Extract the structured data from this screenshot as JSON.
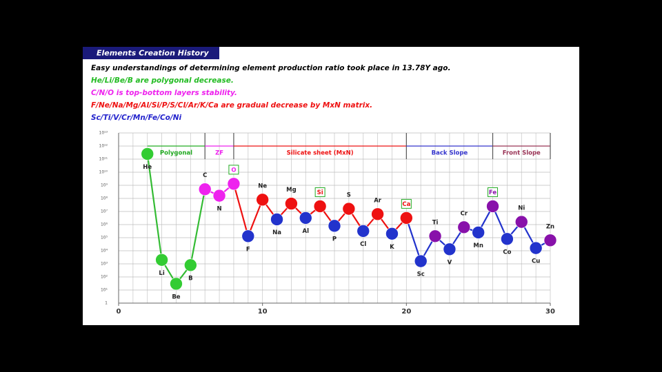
{
  "header": {
    "title": "Elements Creation History"
  },
  "text_lines": [
    {
      "text": "Easy understandings of determining element production ratio took place in 13.78Y ago.",
      "color": "#000000"
    },
    {
      "text": "He/Li/Be/B are polygonal decrease.",
      "color": "#22bb22"
    },
    {
      "text": "C/N/O is top-bottom layers stability.",
      "color": "#ee22ee"
    },
    {
      "text": "F/Ne/Na/Mg/Al/Si/P/S/Cl/Ar/K/Ca are gradual decrease by MxN matrix.",
      "color": "#ee1111"
    },
    {
      "text": "Sc/Ti/V/Cr/Mn/Fe/Co/Ni",
      "color": "#2222cc"
    }
  ],
  "chart_data": {
    "type": "line",
    "log_y": true,
    "categories": [
      "He",
      "Li",
      "Be",
      "B",
      "C",
      "N",
      "O",
      "F",
      "Ne",
      "Na",
      "Mg",
      "Al",
      "Si",
      "P",
      "S",
      "Cl",
      "Ar",
      "K",
      "Ca",
      "Sc",
      "Ti",
      "V",
      "Cr",
      "Mn",
      "Fe",
      "Co",
      "Ni",
      "Cu",
      "Zn"
    ],
    "x": [
      2,
      3,
      4,
      5,
      6,
      7,
      8,
      9,
      10,
      11,
      12,
      13,
      14,
      15,
      16,
      17,
      18,
      19,
      20,
      21,
      22,
      23,
      24,
      25,
      26,
      27,
      28,
      29,
      30
    ],
    "values": [
      250000000000.0,
      2000,
      30,
      800,
      500000000.0,
      160000000.0,
      1300000000.0,
      130000.0,
      80000000.0,
      2500000.0,
      40000000.0,
      3200000.0,
      25000000.0,
      800000.0,
      16000000.0,
      320000.0,
      6300000.0,
      200000.0,
      3200000.0,
      1600,
      130000.0,
      13000.0,
      630000.0,
      250000.0,
      25000000.0,
      80000.0,
      1600000.0,
      16000.0,
      63000.0
    ],
    "point_colors": [
      "#33cc33",
      "#33cc33",
      "#33cc33",
      "#33cc33",
      "#ee22ee",
      "#ee22ee",
      "#ee22ee",
      "#2233cc",
      "#ee1111",
      "#2233cc",
      "#ee1111",
      "#2233cc",
      "#ee1111",
      "#2233cc",
      "#ee1111",
      "#2233cc",
      "#ee1111",
      "#2233cc",
      "#ee1111",
      "#2233cc",
      "#8811aa",
      "#2233cc",
      "#8811aa",
      "#2233cc",
      "#8811aa",
      "#2233cc",
      "#8811aa",
      "#2233cc",
      "#8811aa"
    ],
    "segment_colors": [
      "#33bb33",
      "#33bb33",
      "#33bb33",
      "#33bb33",
      "#ee22ee",
      "#ee22ee",
      "#ee1111",
      "#ee1111",
      "#ee1111",
      "#ee1111",
      "#ee1111",
      "#ee1111",
      "#ee1111",
      "#ee1111",
      "#ee1111",
      "#ee1111",
      "#ee1111",
      "#ee1111",
      "#2233cc",
      "#2233cc",
      "#2233cc",
      "#2233cc",
      "#2233cc",
      "#2233cc",
      "#2233cc",
      "#2233cc",
      "#2233cc",
      "#2233cc"
    ],
    "boxed": [
      6,
      12,
      18,
      24
    ],
    "xlim": [
      0,
      30
    ],
    "xticks": [
      0,
      10,
      20,
      30
    ],
    "ylim": [
      1,
      10000000000000.0
    ],
    "yticks": [
      {
        "value": 1,
        "label": "1"
      },
      {
        "value": 10,
        "label": "10¹"
      },
      {
        "value": 100,
        "label": "10²"
      },
      {
        "value": 1000,
        "label": "10³"
      },
      {
        "value": 10000.0,
        "label": "10⁴"
      },
      {
        "value": 100000.0,
        "label": "10⁵"
      },
      {
        "value": 1000000.0,
        "label": "10⁶"
      },
      {
        "value": 10000000.0,
        "label": "10⁷"
      },
      {
        "value": 100000000.0,
        "label": "10⁸"
      },
      {
        "value": 1000000000.0,
        "label": "10⁹"
      },
      {
        "value": 10000000000.0,
        "label": "10¹⁰"
      },
      {
        "value": 100000000000.0,
        "label": "10¹¹"
      },
      {
        "value": 1000000000000.0,
        "label": "10¹²"
      },
      {
        "value": 10000000000000.0,
        "label": "10¹³"
      }
    ],
    "grid": true,
    "regions": [
      {
        "label": "Polygonal",
        "from": 2,
        "to": 6,
        "color": "#22aa22"
      },
      {
        "label": "ZF",
        "from": 6,
        "to": 8,
        "color": "#ee22ee"
      },
      {
        "label": "Silicate sheet (MxN)",
        "from": 8,
        "to": 20,
        "color": "#ee1111"
      },
      {
        "label": "Back Slope",
        "from": 20,
        "to": 26,
        "color": "#3333cc"
      },
      {
        "label": "Front Slope",
        "from": 26,
        "to": 30,
        "color": "#993355"
      }
    ]
  }
}
